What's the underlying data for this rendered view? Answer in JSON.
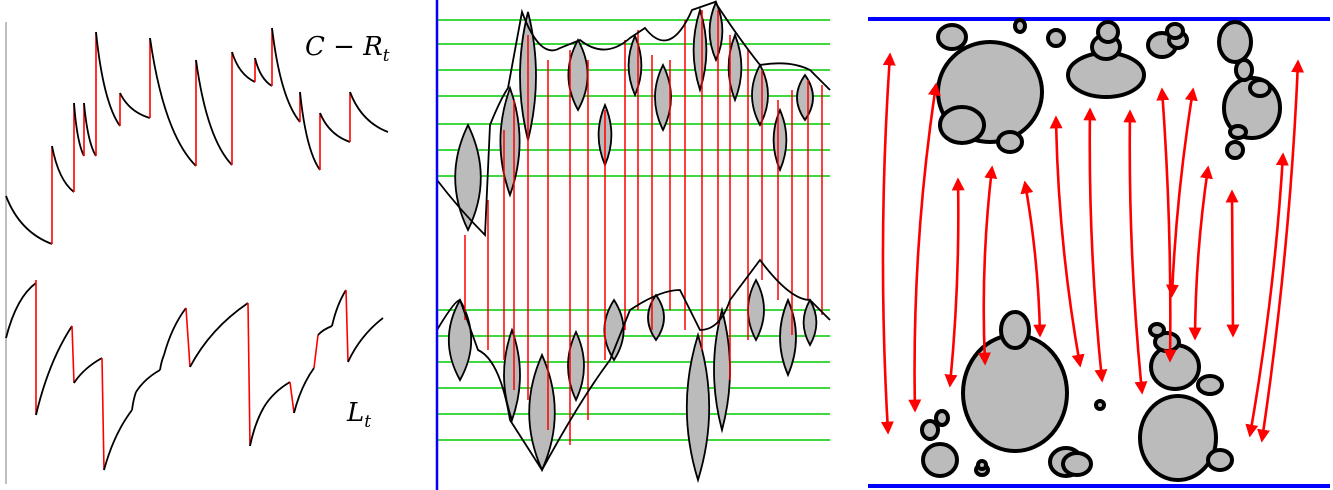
{
  "labels": {
    "top_series": {
      "main": "C − R",
      "subscript": "t"
    },
    "bottom_series": {
      "main": "L",
      "subscript": "t"
    }
  },
  "colors": {
    "curve": "#000000",
    "jump": "#ff0000",
    "fill": "#bbbbbb",
    "level_lines": "#00cc00",
    "boundary": "#0000ff",
    "axis": "#aaaaaa"
  },
  "icons": {
    "double_arrow": "red-double-headed-arrow",
    "blob": "grey-rounded-blob"
  }
}
